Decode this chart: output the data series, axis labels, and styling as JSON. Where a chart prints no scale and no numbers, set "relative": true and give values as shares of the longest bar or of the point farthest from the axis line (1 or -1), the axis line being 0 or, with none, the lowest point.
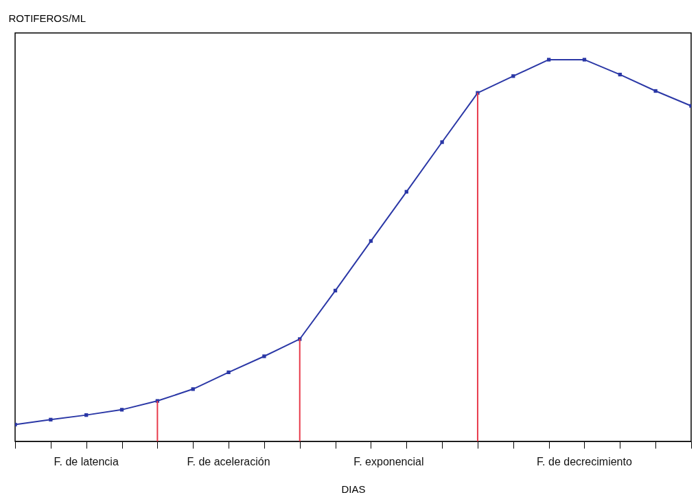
{
  "chart_data": {
    "type": "line",
    "ylabel": "ROTIFEROS/ML",
    "xlabel": "DIAS",
    "relative": true,
    "categories": [
      null,
      null,
      null,
      null,
      null,
      null,
      null,
      null,
      null,
      null,
      null,
      null,
      null,
      null,
      null,
      null,
      null,
      null,
      null,
      null
    ],
    "series": [
      {
        "color": "#2a37a6",
        "values": [
          0.044,
          0.057,
          0.069,
          0.083,
          0.106,
          0.137,
          0.181,
          0.223,
          0.268,
          0.395,
          0.525,
          0.654,
          0.784,
          0.913,
          0.957,
          1,
          1,
          0.961,
          0.918,
          0.879
        ]
      }
    ],
    "marker": "square",
    "annotations": [
      "F. de latencia",
      "F. de aceleración",
      "F. exponencial",
      "F. de decrecimiento"
    ],
    "grid": false
  }
}
